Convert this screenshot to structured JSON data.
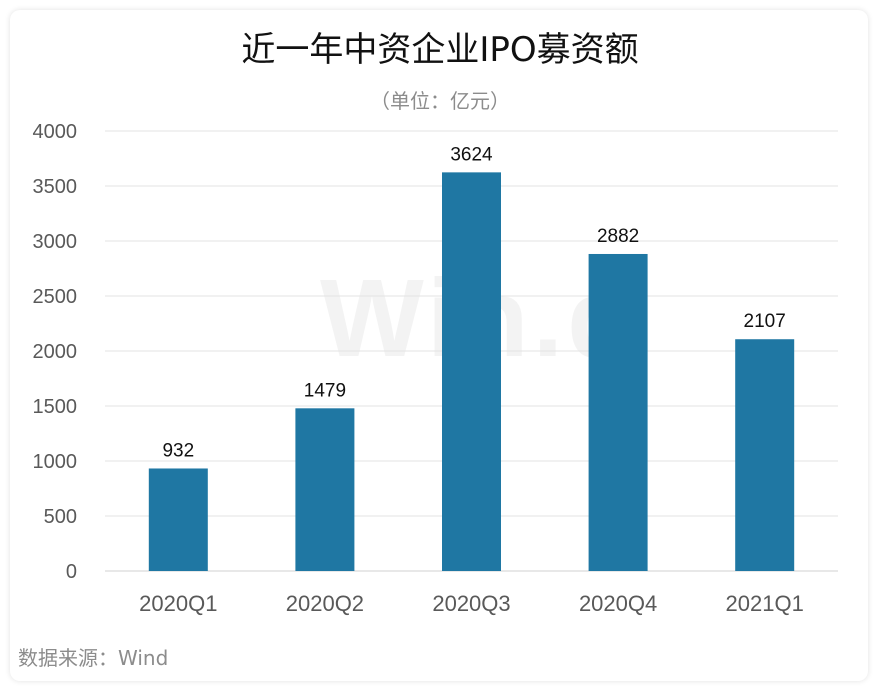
{
  "header": {
    "title": "近一年中资企业IPO募资额",
    "subtitle": "（单位：亿元）"
  },
  "footer": {
    "source": "数据来源：Wind"
  },
  "watermark": "Win.d",
  "colors": {
    "bar": "#1f77a3",
    "grid": "#e3e3e3",
    "axis_text": "#595959",
    "label_text": "#111111"
  },
  "chart_data": {
    "type": "bar",
    "categories": [
      "2020Q1",
      "2020Q2",
      "2020Q3",
      "2020Q4",
      "2021Q1"
    ],
    "values": [
      932,
      1479,
      3624,
      2882,
      2107
    ],
    "title": "近一年中资企业IPO募资额",
    "subtitle": "（单位：亿元）",
    "xlabel": "",
    "ylabel": "",
    "ylim": [
      0,
      4000
    ],
    "yticks": [
      0,
      500,
      1000,
      1500,
      2000,
      2500,
      3000,
      3500,
      4000
    ],
    "grid": true,
    "legend": "none",
    "data_labels": true
  }
}
